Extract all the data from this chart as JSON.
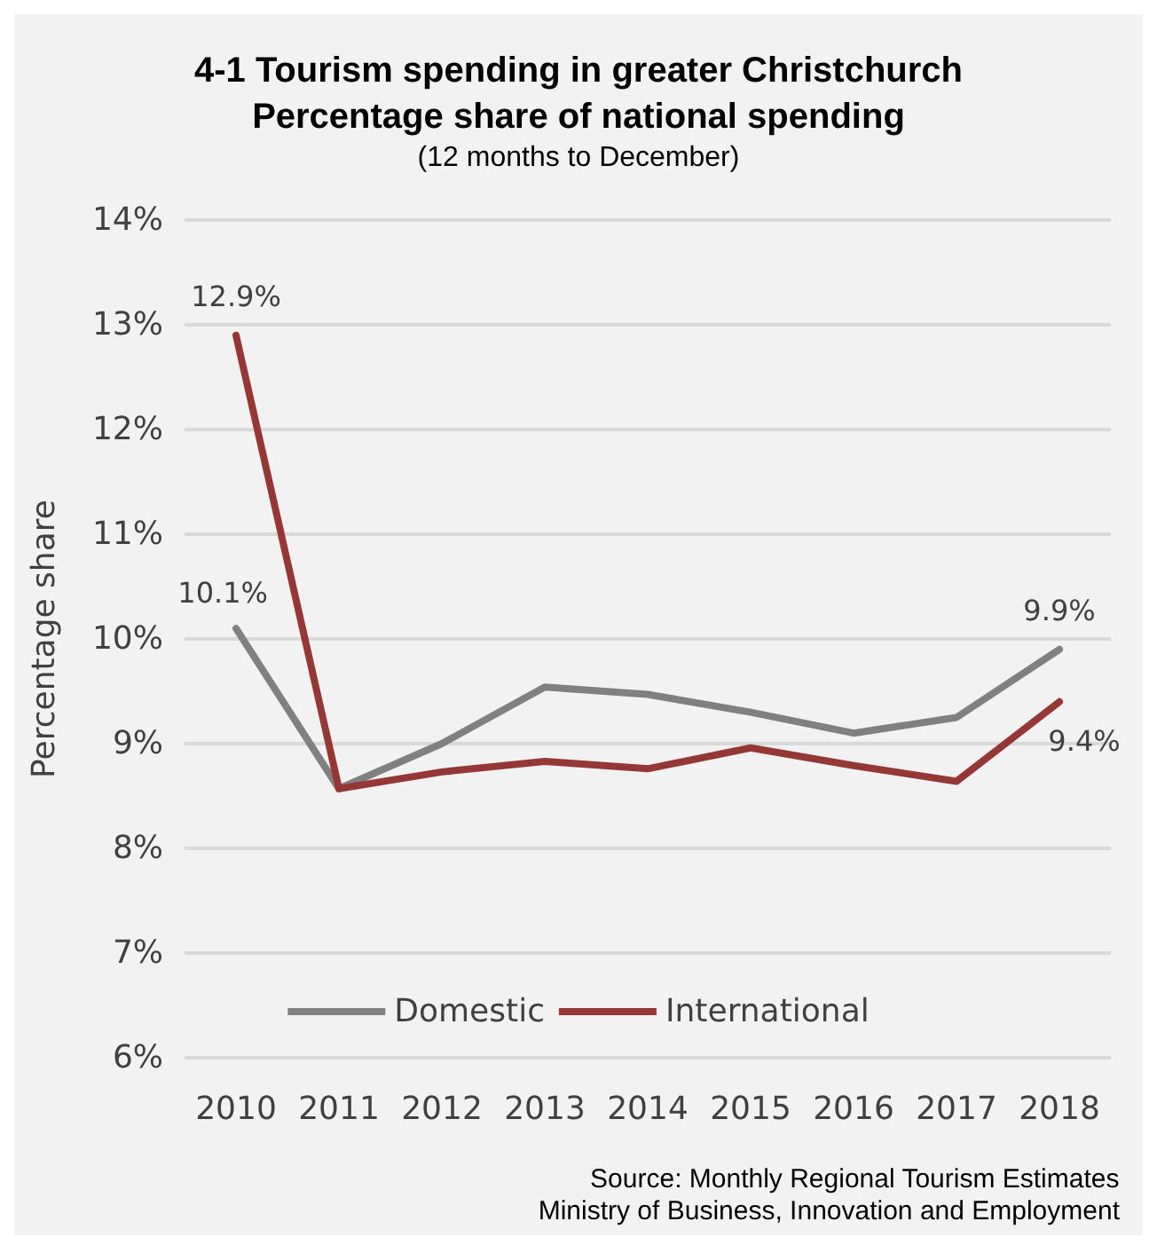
{
  "chart_data": {
    "type": "line",
    "title": "4-1 Tourism spending in greater Christchurch\nPercentage share of national spending",
    "subtitle": "(12 months to December)",
    "ylabel": "Percentage share",
    "categories": [
      "2010",
      "2011",
      "2012",
      "2013",
      "2014",
      "2015",
      "2016",
      "2017",
      "2018"
    ],
    "series": [
      {
        "name": "Domestic",
        "color": "#808080",
        "values": [
          10.1,
          8.57,
          9.0,
          9.54,
          9.47,
          9.3,
          9.1,
          9.25,
          9.9
        ],
        "value_labels": [
          "10.1%",
          null,
          null,
          null,
          null,
          null,
          null,
          null,
          "9.9%"
        ]
      },
      {
        "name": "International",
        "color": "#953735",
        "values": [
          12.9,
          8.57,
          8.73,
          8.83,
          8.76,
          8.96,
          8.79,
          8.64,
          9.4
        ],
        "value_labels": [
          "12.9%",
          null,
          null,
          null,
          null,
          null,
          null,
          null,
          "9.4%"
        ]
      }
    ],
    "ylim": [
      6,
      14
    ],
    "yticks": [
      {
        "value": 6,
        "label": "6%"
      },
      {
        "value": 7,
        "label": "7%"
      },
      {
        "value": 8,
        "label": "8%"
      },
      {
        "value": 9,
        "label": "9%"
      },
      {
        "value": 10,
        "label": "10%"
      },
      {
        "value": 11,
        "label": "11%"
      },
      {
        "value": 12,
        "label": "12%"
      },
      {
        "value": 13,
        "label": "13%"
      },
      {
        "value": 14,
        "label": "14%"
      }
    ],
    "grid": "y",
    "legend": "bottom",
    "marker": "none",
    "line_style": "solid",
    "annotations": [
      "Source: Monthly Regional Tourism Estimates",
      "Ministry of Business, Innovation and Employment"
    ]
  }
}
